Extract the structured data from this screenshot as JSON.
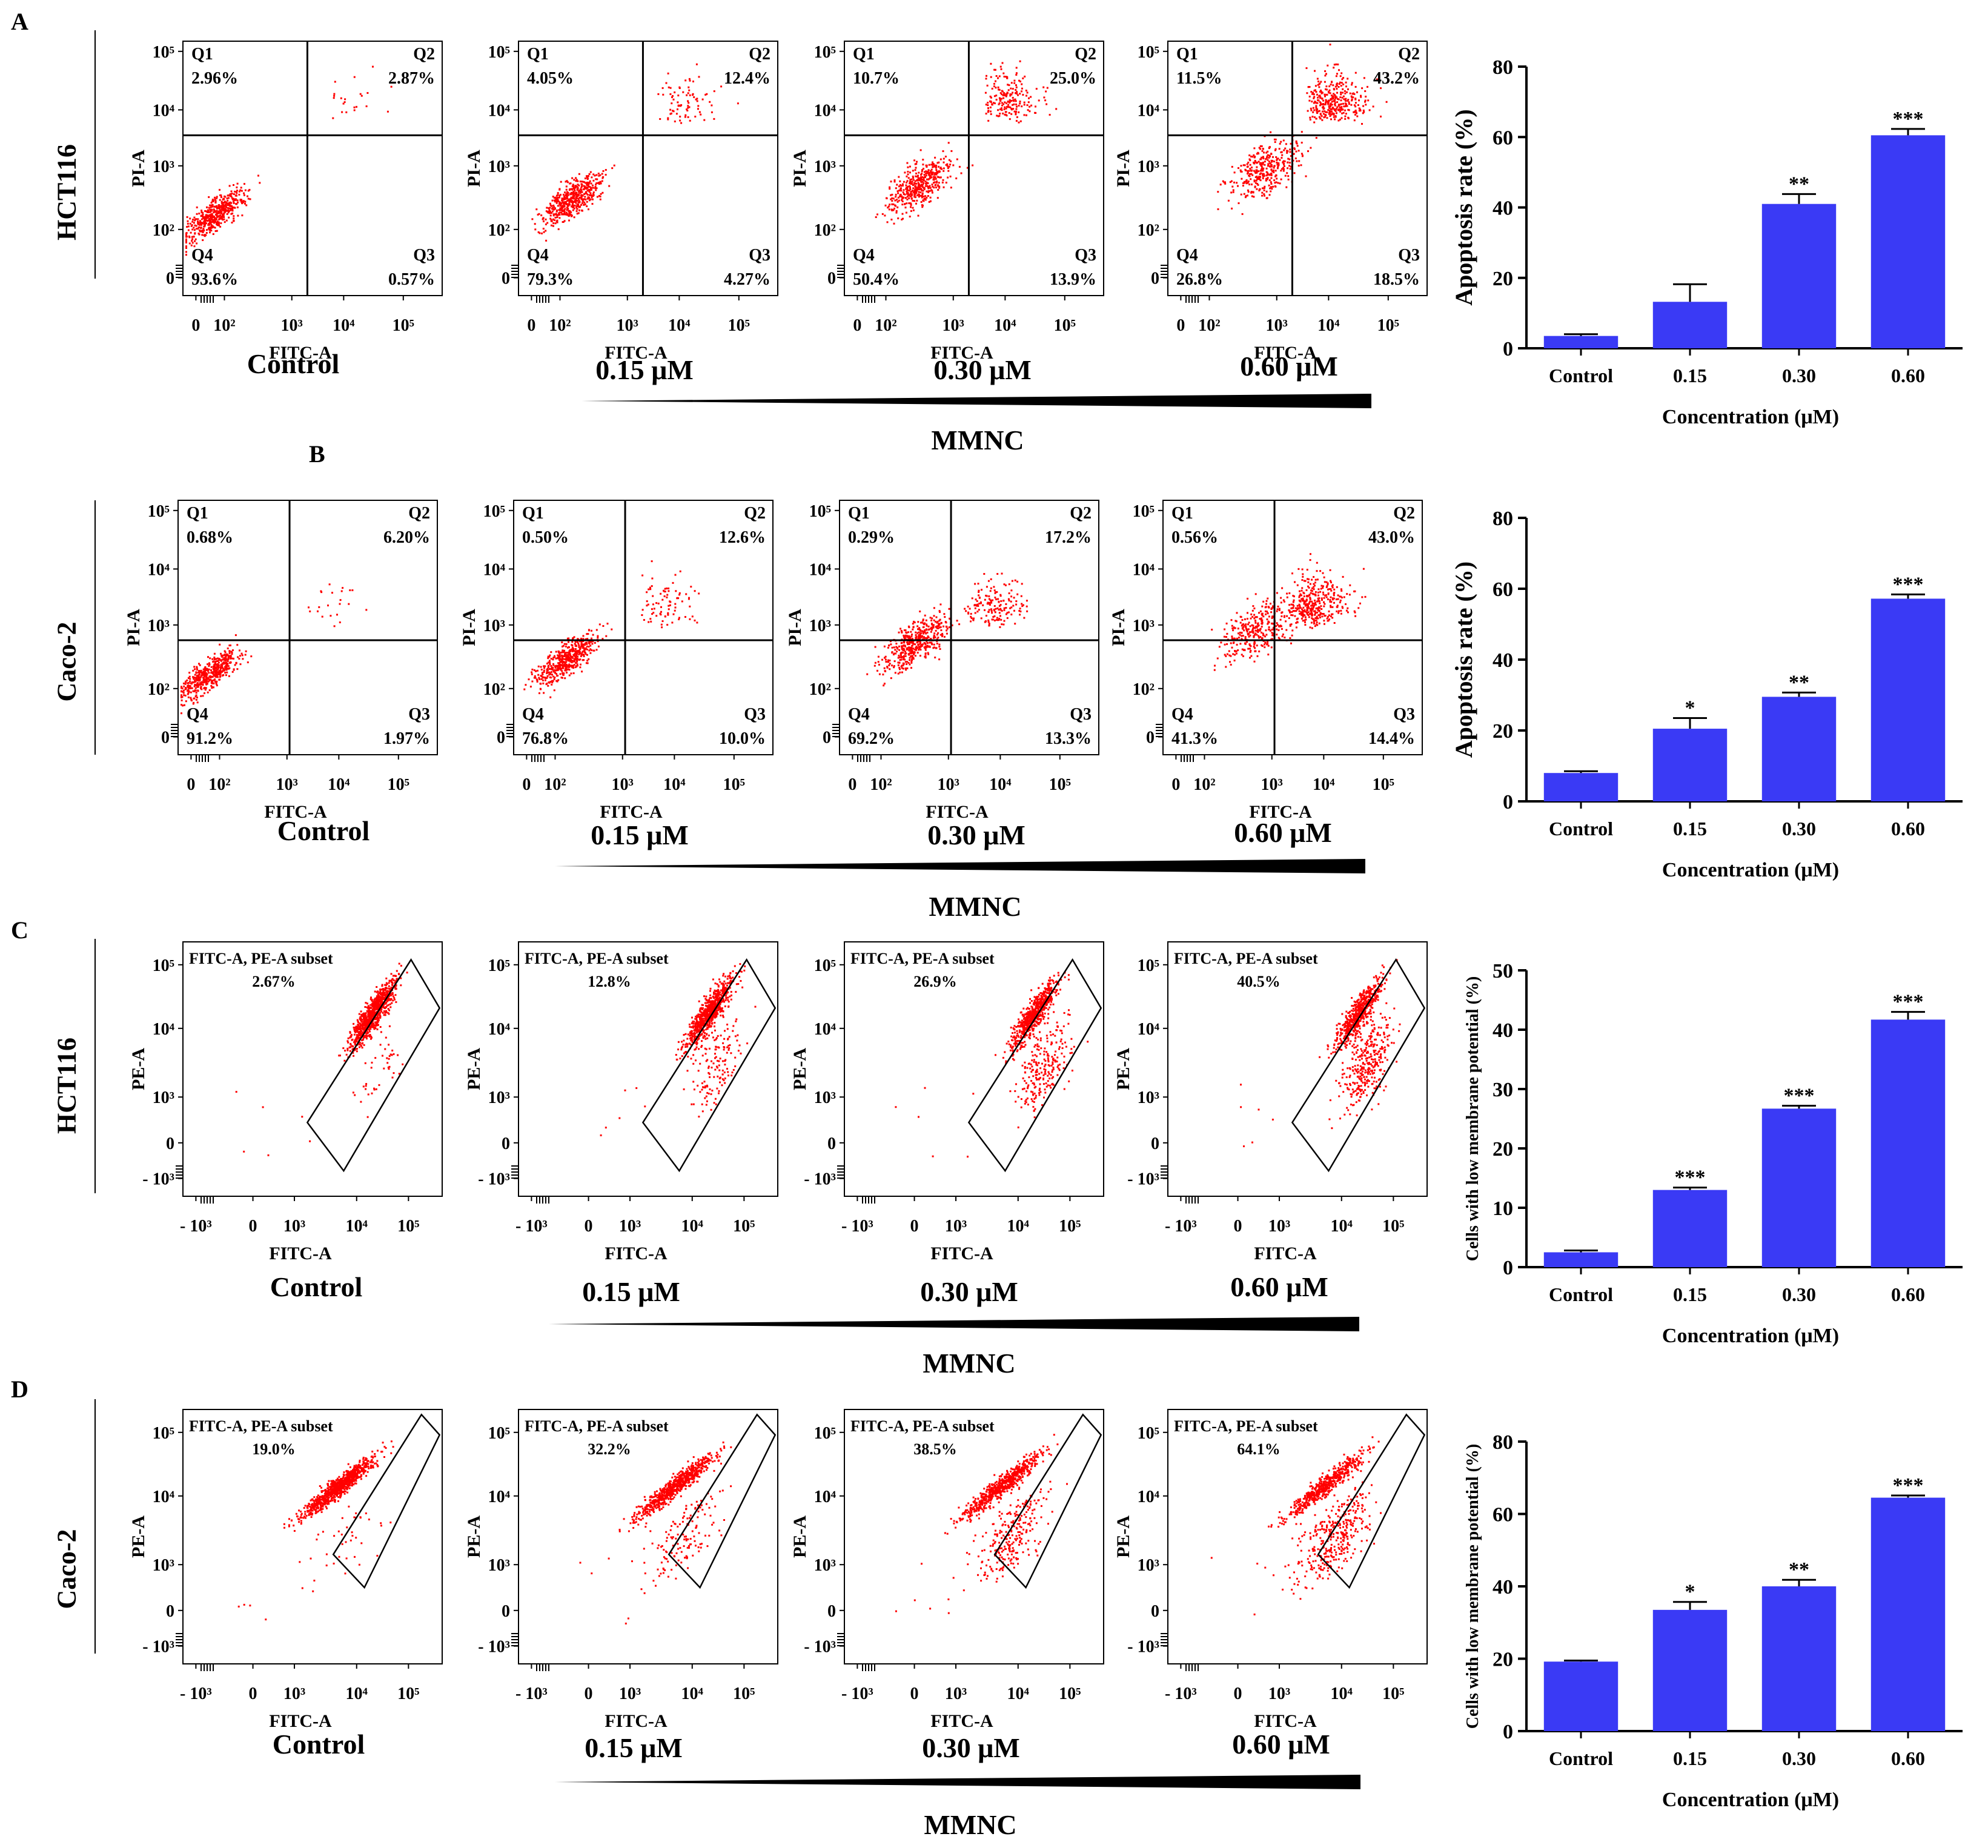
{
  "figure": {
    "wedge_color": "#000000",
    "dot_color": "#ff0000",
    "bar_color": "#3a3af5"
  },
  "panel_letters": [
    "A",
    "B",
    "C",
    "D"
  ],
  "rows": [
    {
      "letter": "A",
      "cell_line": "HCT116",
      "assay": "annexin",
      "x_axis_label": "FITC-A",
      "y_axis_label": "PI-A",
      "x_ticks": [
        "0",
        "10²",
        "10³",
        "10⁴",
        "10⁵"
      ],
      "y_ticks": [
        "0",
        "10²",
        "10³",
        "10⁴",
        "10⁵"
      ],
      "treatment_label": "MMNC",
      "conditions": [
        {
          "label": "Control",
          "quadrants": [
            {
              "name": "Q1",
              "pct": "2.96%"
            },
            {
              "name": "Q2",
              "pct": "2.87%"
            },
            {
              "name": "Q3",
              "pct": "0.57%"
            },
            {
              "name": "Q4",
              "pct": "93.6%"
            }
          ]
        },
        {
          "label": "0.15 μM",
          "quadrants": [
            {
              "name": "Q1",
              "pct": "4.05%"
            },
            {
              "name": "Q2",
              "pct": "12.4%"
            },
            {
              "name": "Q3",
              "pct": "4.27%"
            },
            {
              "name": "Q4",
              "pct": "79.3%"
            }
          ]
        },
        {
          "label": "0.30 μM",
          "quadrants": [
            {
              "name": "Q1",
              "pct": "10.7%"
            },
            {
              "name": "Q2",
              "pct": "25.0%"
            },
            {
              "name": "Q3",
              "pct": "13.9%"
            },
            {
              "name": "Q4",
              "pct": "50.4%"
            }
          ]
        },
        {
          "label": "0.60 μM",
          "quadrants": [
            {
              "name": "Q1",
              "pct": "11.5%"
            },
            {
              "name": "Q2",
              "pct": "43.2%"
            },
            {
              "name": "Q3",
              "pct": "18.5%"
            },
            {
              "name": "Q4",
              "pct": "26.8%"
            }
          ]
        }
      ]
    },
    {
      "letter": "B",
      "cell_line": "Caco-2",
      "assay": "annexin",
      "x_axis_label": "FITC-A",
      "y_axis_label": "PI-A",
      "x_ticks": [
        "0",
        "10²",
        "10³",
        "10⁴",
        "10⁵"
      ],
      "y_ticks": [
        "0",
        "10²",
        "10³",
        "10⁴",
        "10⁵"
      ],
      "treatment_label": "MMNC",
      "conditions": [
        {
          "label": "Control",
          "quadrants": [
            {
              "name": "Q1",
              "pct": "0.68%"
            },
            {
              "name": "Q2",
              "pct": "6.20%"
            },
            {
              "name": "Q3",
              "pct": "1.97%"
            },
            {
              "name": "Q4",
              "pct": "91.2%"
            }
          ]
        },
        {
          "label": "0.15 μM",
          "quadrants": [
            {
              "name": "Q1",
              "pct": "0.50%"
            },
            {
              "name": "Q2",
              "pct": "12.6%"
            },
            {
              "name": "Q3",
              "pct": "10.0%"
            },
            {
              "name": "Q4",
              "pct": "76.8%"
            }
          ]
        },
        {
          "label": "0.30 μM",
          "quadrants": [
            {
              "name": "Q1",
              "pct": "0.29%"
            },
            {
              "name": "Q2",
              "pct": "17.2%"
            },
            {
              "name": "Q3",
              "pct": "13.3%"
            },
            {
              "name": "Q4",
              "pct": "69.2%"
            }
          ]
        },
        {
          "label": "0.60 μM",
          "quadrants": [
            {
              "name": "Q1",
              "pct": "0.56%"
            },
            {
              "name": "Q2",
              "pct": "43.0%"
            },
            {
              "name": "Q3",
              "pct": "14.4%"
            },
            {
              "name": "Q4",
              "pct": "41.3%"
            }
          ]
        }
      ]
    },
    {
      "letter": "C",
      "cell_line": "HCT116",
      "assay": "jc1",
      "x_axis_label": "FITC-A",
      "y_axis_label": "PE-A",
      "x_ticks": [
        "- 10³",
        "0",
        "10³",
        "10⁴",
        "10⁵"
      ],
      "y_ticks": [
        "- 10³",
        "0",
        "10³",
        "10⁴",
        "10⁵"
      ],
      "treatment_label": "MMNC",
      "gate_name": "FITC-A, PE-A subset",
      "conditions": [
        {
          "label": "Control",
          "gate_pct": "2.67%"
        },
        {
          "label": "0.15 μM",
          "gate_pct": "12.8%"
        },
        {
          "label": "0.30 μM",
          "gate_pct": "26.9%"
        },
        {
          "label": "0.60 μM",
          "gate_pct": "40.5%"
        }
      ]
    },
    {
      "letter": "D",
      "cell_line": "Caco-2",
      "assay": "jc1",
      "x_axis_label": "FITC-A",
      "y_axis_label": "PE-A",
      "x_ticks": [
        "- 10³",
        "0",
        "10³",
        "10⁴",
        "10⁵"
      ],
      "y_ticks": [
        "- 10³",
        "0",
        "10³",
        "10⁴",
        "10⁵"
      ],
      "treatment_label": "MMNC",
      "gate_name": "FITC-A, PE-A subset",
      "conditions": [
        {
          "label": "Control",
          "gate_pct": "19.0%"
        },
        {
          "label": "0.15 μM",
          "gate_pct": "32.2%"
        },
        {
          "label": "0.30 μM",
          "gate_pct": "38.5%"
        },
        {
          "label": "0.60 μM",
          "gate_pct": "64.1%"
        }
      ]
    }
  ],
  "chart_data": [
    {
      "type": "bar",
      "panel": "A",
      "categories": [
        "Control",
        "0.15",
        "0.30",
        "0.60"
      ],
      "values": [
        3.5,
        13.2,
        41.0,
        60.5
      ],
      "errors": [
        0.5,
        5.0,
        2.8,
        1.8
      ],
      "significance": [
        "",
        "",
        "**",
        "***"
      ],
      "ylabel": "Apoptosis rate (%)",
      "xlabel": "Concentration (μM)",
      "ylim": [
        0,
        80
      ],
      "yticks": [
        0,
        20,
        40,
        60,
        80
      ]
    },
    {
      "type": "bar",
      "panel": "B",
      "categories": [
        "Control",
        "0.15",
        "0.30",
        "0.60"
      ],
      "values": [
        8.0,
        20.5,
        29.5,
        57.2
      ],
      "errors": [
        0.5,
        3.0,
        1.2,
        1.2
      ],
      "significance": [
        "",
        "*",
        "**",
        "***"
      ],
      "ylabel": "Apoptosis rate (%)",
      "xlabel": "Concentration (μM)",
      "ylim": [
        0,
        80
      ],
      "yticks": [
        0,
        20,
        40,
        60,
        80
      ]
    },
    {
      "type": "bar",
      "panel": "C",
      "categories": [
        "Control",
        "0.15",
        "0.30",
        "0.60"
      ],
      "values": [
        2.5,
        13.0,
        26.7,
        41.7
      ],
      "errors": [
        0.3,
        0.4,
        0.5,
        1.3
      ],
      "significance": [
        "",
        "***",
        "***",
        "***"
      ],
      "ylabel": "Cells with low membrane potential (%)",
      "xlabel": "Concentration (μM)",
      "ylim": [
        0,
        50
      ],
      "yticks": [
        0,
        10,
        20,
        30,
        40,
        50
      ]
    },
    {
      "type": "bar",
      "panel": "D",
      "categories": [
        "Control",
        "0.15",
        "0.30",
        "0.60"
      ],
      "values": [
        19.2,
        33.5,
        40.0,
        64.5
      ],
      "errors": [
        0.3,
        2.2,
        1.8,
        0.6
      ],
      "significance": [
        "",
        "*",
        "**",
        "***"
      ],
      "ylabel": "Cells with low membrane potential (%)",
      "xlabel": "Concentration (μM)",
      "ylim": [
        0,
        80
      ],
      "yticks": [
        0,
        20,
        40,
        60,
        80
      ]
    }
  ]
}
